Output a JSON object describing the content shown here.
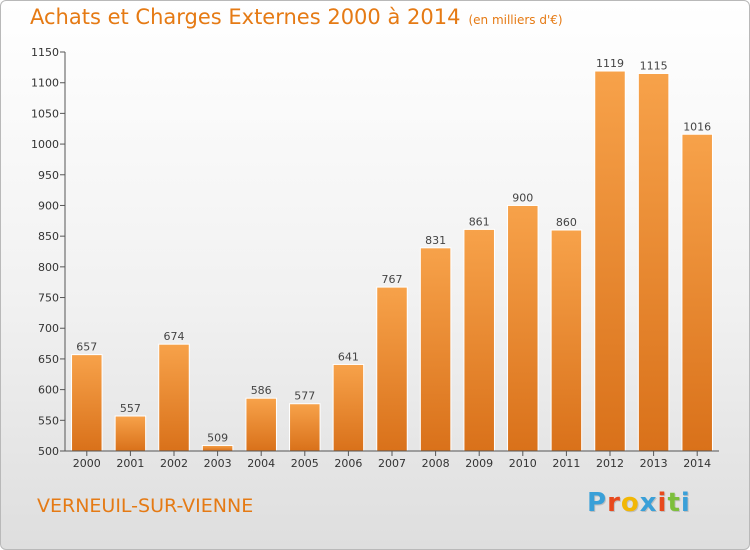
{
  "header": {
    "title": "Achats et Charges Externes 2000 à 2014",
    "unit": "(en milliers d'€)"
  },
  "footer": {
    "city": "VERNEUIL-SUR-VIENNE",
    "logo": "Proxiti"
  },
  "colors": {
    "accent": "#e57a14",
    "bar_light": "#f7a24a",
    "bar_dark": "#d9711a",
    "logo_letters": [
      "#3aa0d8",
      "#e8491d",
      "#f2b705",
      "#3aa0d8",
      "#e8491d",
      "#7cbf3b",
      "#3aa0d8"
    ]
  },
  "chart_data": {
    "type": "bar",
    "title": "Achats et Charges Externes 2000 à 2014",
    "subtitle": "(en milliers d'€)",
    "categories": [
      "2000",
      "2001",
      "2002",
      "2003",
      "2004",
      "2005",
      "2006",
      "2007",
      "2008",
      "2009",
      "2010",
      "2011",
      "2012",
      "2013",
      "2014"
    ],
    "values": [
      657,
      557,
      674,
      509,
      586,
      577,
      641,
      767,
      831,
      861,
      900,
      860,
      1119,
      1115,
      1016
    ],
    "ylim": [
      500,
      1150
    ],
    "yticks": [
      500,
      550,
      600,
      650,
      700,
      750,
      800,
      850,
      900,
      950,
      1000,
      1050,
      1100,
      1150
    ],
    "grid": false,
    "legend": "none"
  }
}
